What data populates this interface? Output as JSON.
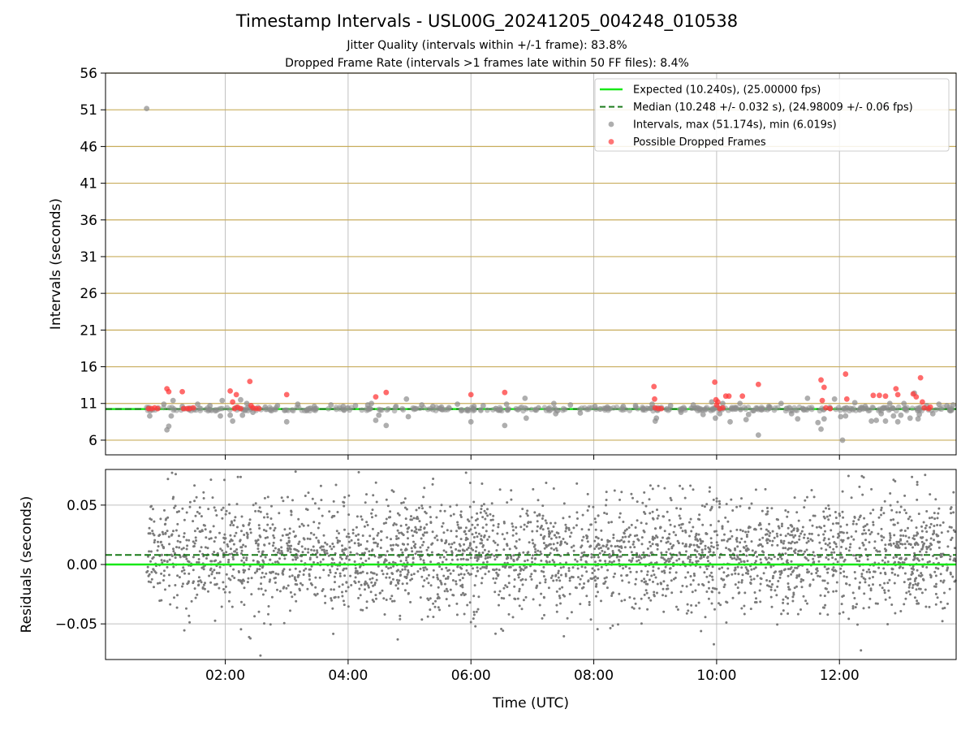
{
  "chart_data": [
    {
      "type": "scatter",
      "title": "Timestamp Intervals - USL00G_20241205_004248_010538",
      "subtitle_lines": [
        "Jitter Quality (intervals within +/-1 frame): 83.8%",
        "Dropped Frame Rate (intervals >1 frames late within 50 FF files): 8.4%"
      ],
      "ylabel": "Intervals (seconds)",
      "x_unit": "hours UTC",
      "xlim": [
        0.05,
        13.9
      ],
      "ylim": [
        4,
        56
      ],
      "y_ticks": [
        6,
        11,
        16,
        21,
        26,
        31,
        36,
        41,
        46,
        51,
        56
      ],
      "x_ticks": [
        2,
        4,
        6,
        8,
        10,
        12
      ],
      "x_tick_labels": [
        "02:00",
        "04:00",
        "06:00",
        "08:00",
        "10:00",
        "12:00"
      ],
      "horizontal_gridlines_color": "#c8ad5c",
      "grid": true,
      "legend_position": "top-right",
      "legend": [
        {
          "label": "Expected (10.240s), (25.00000 fps)",
          "kind": "line",
          "color": "#18e818"
        },
        {
          "label": "Median (10.248 +/- 0.032 s), (24.98009 +/- 0.06 fps)",
          "kind": "dashed",
          "color": "#1a7a1a"
        },
        {
          "label": "Intervals, max (51.174s), min (6.019s)",
          "kind": "marker",
          "color": "#8c8c8c"
        },
        {
          "label": "Possible Dropped Frames",
          "kind": "marker",
          "color": "#ff3a3a"
        }
      ],
      "lines": {
        "expected": 10.24,
        "median": 10.248
      },
      "series": [
        {
          "name": "Intervals, max (51.174s), min (6.019s)",
          "color": "#8c8c8c",
          "points": [
            [
              0.72,
              51.17
            ],
            [
              0.77,
              9.3
            ],
            [
              1.0,
              10.9
            ],
            [
              1.05,
              7.4
            ],
            [
              1.08,
              7.9
            ],
            [
              1.12,
              9.3
            ],
            [
              1.15,
              11.4
            ],
            [
              1.3,
              10.6
            ],
            [
              1.55,
              10.9
            ],
            [
              1.75,
              10.7
            ],
            [
              1.92,
              9.3
            ],
            [
              1.95,
              11.4
            ],
            [
              2.08,
              9.4
            ],
            [
              2.12,
              8.6
            ],
            [
              2.25,
              11.5
            ],
            [
              2.28,
              9.4
            ],
            [
              2.35,
              11.0
            ],
            [
              2.45,
              9.8
            ],
            [
              2.65,
              10.5
            ],
            [
              2.85,
              10.7
            ],
            [
              3.0,
              8.5
            ],
            [
              3.18,
              10.9
            ],
            [
              3.45,
              10.6
            ],
            [
              3.72,
              10.8
            ],
            [
              3.92,
              10.6
            ],
            [
              4.12,
              10.7
            ],
            [
              4.32,
              10.8
            ],
            [
              4.38,
              11.0
            ],
            [
              4.45,
              8.7
            ],
            [
              4.5,
              9.4
            ],
            [
              4.62,
              8.0
            ],
            [
              4.78,
              10.6
            ],
            [
              4.95,
              11.6
            ],
            [
              4.98,
              9.2
            ],
            [
              5.2,
              10.8
            ],
            [
              5.38,
              10.6
            ],
            [
              5.52,
              10.5
            ],
            [
              5.78,
              10.9
            ],
            [
              6.0,
              8.5
            ],
            [
              6.05,
              10.6
            ],
            [
              6.2,
              10.7
            ],
            [
              6.55,
              8.0
            ],
            [
              6.58,
              10.9
            ],
            [
              6.88,
              11.7
            ],
            [
              6.9,
              9.0
            ],
            [
              7.1,
              10.4
            ],
            [
              7.35,
              11.0
            ],
            [
              7.38,
              9.6
            ],
            [
              7.62,
              10.8
            ],
            [
              7.78,
              9.7
            ],
            [
              8.02,
              10.6
            ],
            [
              8.22,
              10.5
            ],
            [
              8.48,
              10.6
            ],
            [
              8.68,
              10.7
            ],
            [
              8.95,
              10.9
            ],
            [
              9.0,
              8.6
            ],
            [
              9.02,
              9.0
            ],
            [
              9.25,
              10.7
            ],
            [
              9.42,
              9.8
            ],
            [
              9.62,
              10.8
            ],
            [
              9.78,
              9.5
            ],
            [
              9.92,
              11.2
            ],
            [
              9.98,
              9.0
            ],
            [
              10.05,
              9.6
            ],
            [
              10.1,
              11.0
            ],
            [
              10.22,
              8.5
            ],
            [
              10.38,
              11.0
            ],
            [
              10.48,
              8.8
            ],
            [
              10.52,
              9.5
            ],
            [
              10.68,
              6.7
            ],
            [
              10.85,
              10.6
            ],
            [
              11.05,
              11.0
            ],
            [
              11.22,
              9.6
            ],
            [
              11.32,
              8.9
            ],
            [
              11.48,
              11.7
            ],
            [
              11.65,
              8.4
            ],
            [
              11.7,
              7.5
            ],
            [
              11.75,
              8.9
            ],
            [
              11.92,
              11.6
            ],
            [
              12.02,
              9.2
            ],
            [
              12.05,
              6.0
            ],
            [
              12.1,
              9.3
            ],
            [
              12.25,
              11.1
            ],
            [
              12.42,
              10.6
            ],
            [
              12.52,
              8.6
            ],
            [
              12.6,
              8.7
            ],
            [
              12.68,
              9.6
            ],
            [
              12.75,
              8.6
            ],
            [
              12.82,
              11.0
            ],
            [
              12.88,
              9.3
            ],
            [
              12.95,
              8.5
            ],
            [
              13.0,
              9.4
            ],
            [
              13.05,
              11.0
            ],
            [
              13.15,
              9.0
            ],
            [
              13.22,
              12.4
            ],
            [
              13.28,
              8.9
            ],
            [
              13.3,
              9.5
            ],
            [
              13.42,
              10.7
            ],
            [
              13.52,
              9.6
            ],
            [
              13.62,
              10.9
            ],
            [
              13.75,
              10.7
            ],
            [
              13.85,
              10.8
            ]
          ]
        },
        {
          "name": "Possible Dropped Frames",
          "color": "#ff3a3a",
          "points": [
            [
              0.75,
              10.3
            ],
            [
              0.8,
              10.3
            ],
            [
              0.85,
              10.4
            ],
            [
              0.9,
              10.3
            ],
            [
              1.05,
              13.0
            ],
            [
              1.08,
              12.6
            ],
            [
              1.3,
              12.6
            ],
            [
              1.32,
              10.3
            ],
            [
              1.38,
              10.3
            ],
            [
              1.42,
              10.3
            ],
            [
              1.48,
              10.4
            ],
            [
              2.08,
              12.7
            ],
            [
              2.12,
              11.2
            ],
            [
              2.15,
              10.3
            ],
            [
              2.18,
              12.2
            ],
            [
              2.2,
              10.5
            ],
            [
              2.25,
              10.3
            ],
            [
              2.4,
              14.0
            ],
            [
              2.42,
              10.7
            ],
            [
              2.45,
              10.4
            ],
            [
              2.5,
              10.3
            ],
            [
              2.55,
              10.3
            ],
            [
              3.0,
              12.2
            ],
            [
              4.45,
              11.9
            ],
            [
              4.62,
              12.5
            ],
            [
              6.0,
              12.2
            ],
            [
              6.55,
              12.5
            ],
            [
              8.98,
              13.3
            ],
            [
              8.99,
              11.6
            ],
            [
              9.0,
              10.4
            ],
            [
              9.05,
              10.3
            ],
            [
              9.1,
              10.3
            ],
            [
              9.97,
              13.9
            ],
            [
              9.99,
              11.5
            ],
            [
              10.0,
              10.8
            ],
            [
              10.02,
              11.2
            ],
            [
              10.05,
              10.3
            ],
            [
              10.1,
              10.4
            ],
            [
              10.15,
              12.0
            ],
            [
              10.2,
              12.0
            ],
            [
              10.42,
              12.0
            ],
            [
              10.68,
              13.6
            ],
            [
              11.7,
              14.2
            ],
            [
              11.72,
              11.4
            ],
            [
              11.75,
              13.2
            ],
            [
              11.78,
              10.4
            ],
            [
              11.85,
              10.3
            ],
            [
              12.1,
              15.0
            ],
            [
              12.12,
              11.6
            ],
            [
              12.55,
              12.1
            ],
            [
              12.65,
              12.1
            ],
            [
              12.75,
              12.0
            ],
            [
              12.92,
              13.0
            ],
            [
              12.95,
              12.2
            ],
            [
              13.2,
              12.3
            ],
            [
              13.25,
              11.9
            ],
            [
              13.32,
              14.5
            ],
            [
              13.35,
              11.2
            ],
            [
              13.38,
              10.4
            ],
            [
              13.45,
              10.3
            ],
            [
              13.48,
              10.5
            ]
          ]
        }
      ]
    },
    {
      "type": "scatter",
      "ylabel": "Residuals (seconds)",
      "xlabel": "Time (UTC)",
      "x_unit": "hours UTC",
      "xlim": [
        0.05,
        13.9
      ],
      "ylim": [
        -0.08,
        0.08
      ],
      "y_ticks": [
        -0.05,
        0.0,
        0.05
      ],
      "y_tick_labels": [
        "−0.05",
        "0.00",
        "0.05"
      ],
      "x_ticks": [
        2,
        4,
        6,
        8,
        10,
        12
      ],
      "x_tick_labels": [
        "02:00",
        "04:00",
        "06:00",
        "08:00",
        "10:00",
        "12:00"
      ],
      "grid": true,
      "lines": {
        "expected": 0.0,
        "median": 0.008
      },
      "series": [
        {
          "name": "Residuals",
          "color": "#7a7a7a",
          "point_count": 3200,
          "x_range": [
            0.72,
            13.9
          ],
          "center": 0.008,
          "std": 0.024,
          "clip": [
            -0.079,
            0.079
          ]
        }
      ]
    }
  ]
}
